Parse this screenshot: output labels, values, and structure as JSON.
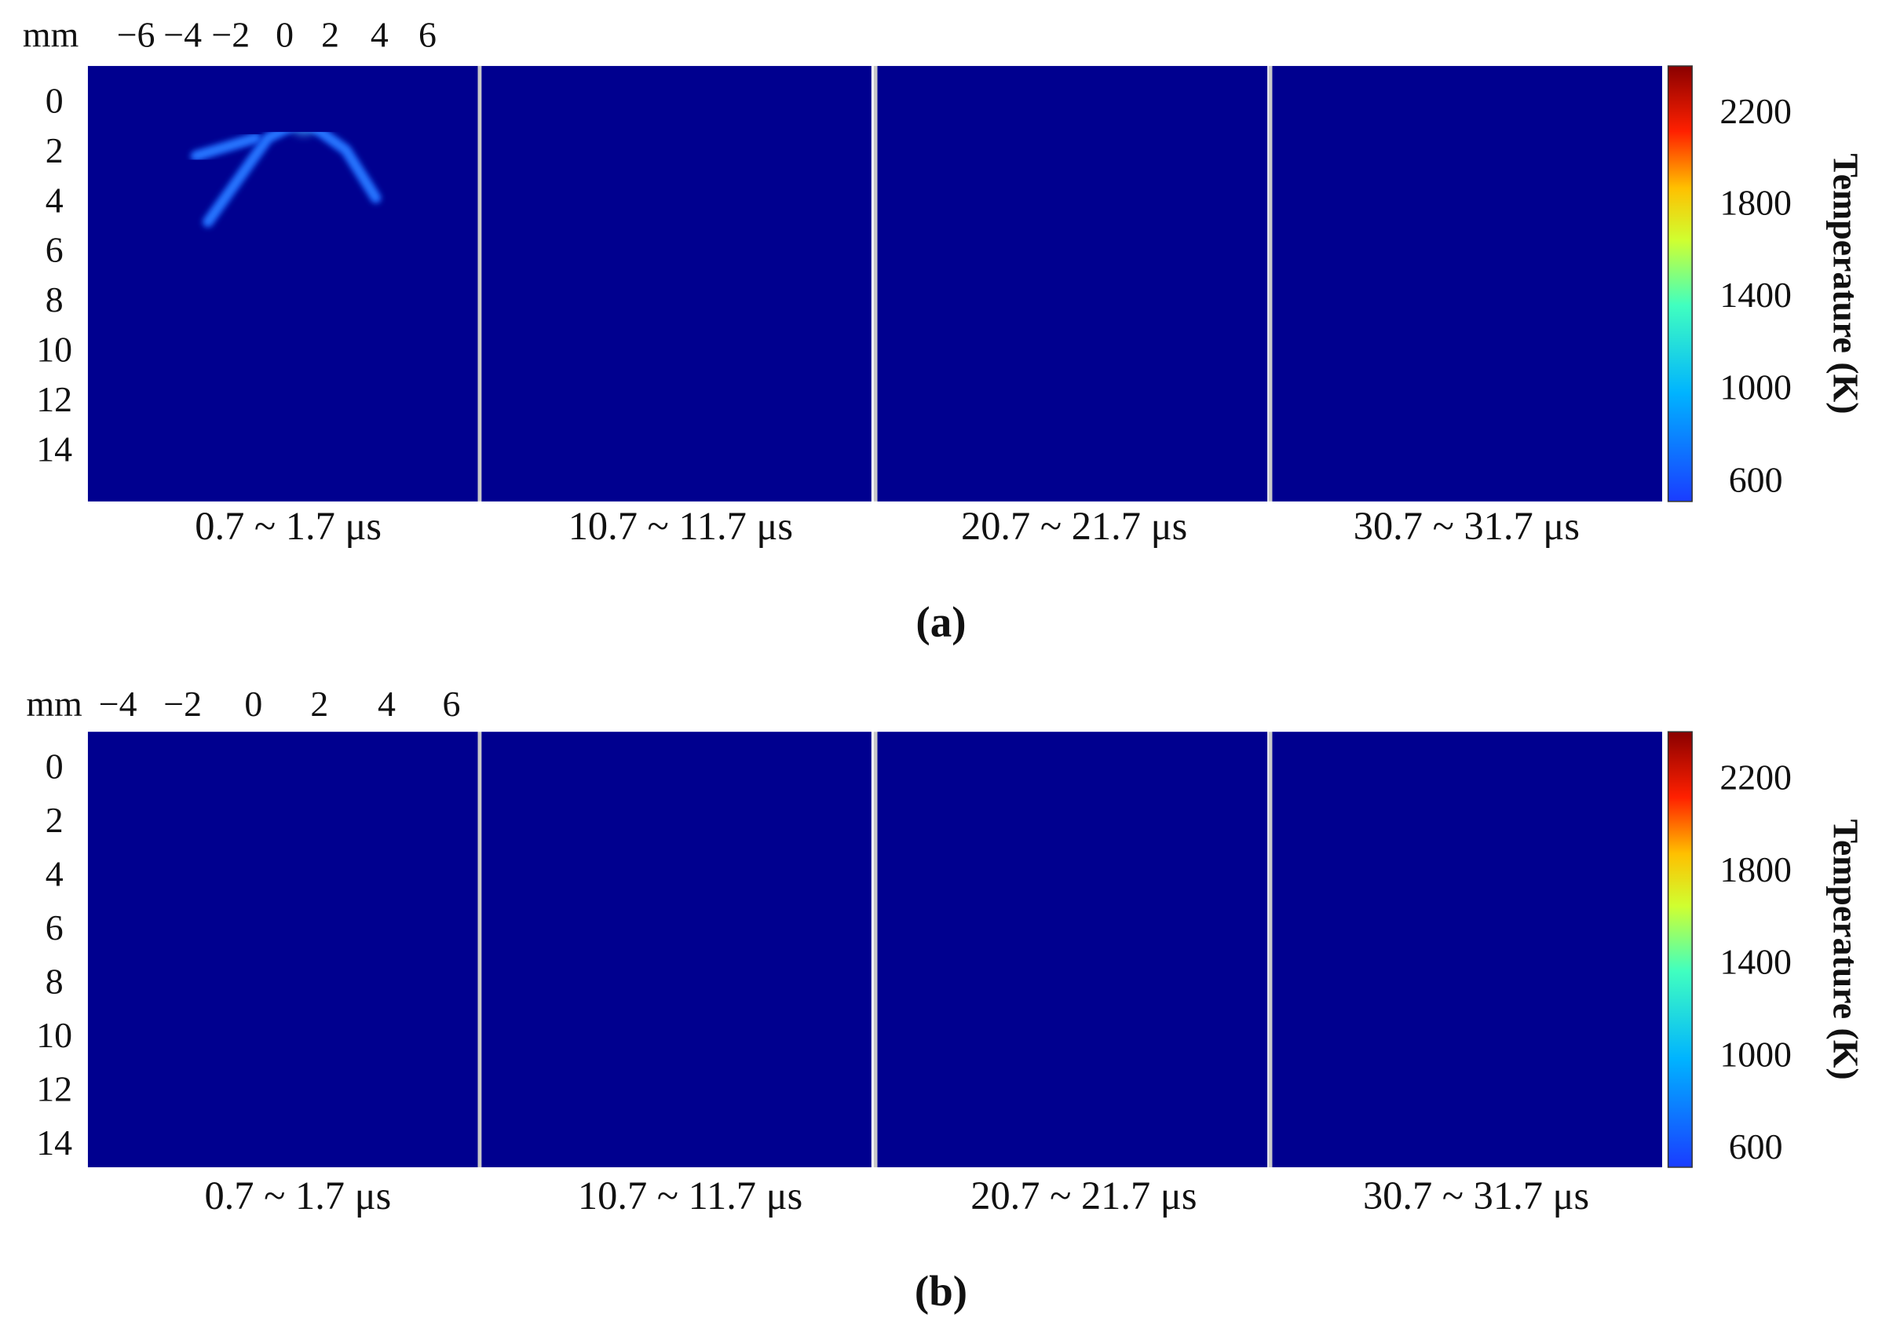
{
  "panels": [
    {
      "label": "(a)",
      "unit": "mm",
      "x_ticks": [
        "−6",
        "−4",
        "−2",
        "0",
        "2",
        "4",
        "6"
      ],
      "y_ticks": [
        0,
        2,
        4,
        6,
        8,
        10,
        12,
        14
      ],
      "times": [
        "0.7 ~ 1.7 μs",
        "10.7 ~ 11.7 μs",
        "20.7 ~ 21.7 μs",
        "30.7 ~ 31.7 μs"
      ],
      "colorbar": {
        "title": "Temperature (K)",
        "ticks": [
          2200,
          1800,
          1400,
          1000,
          600
        ]
      }
    },
    {
      "label": "(b)",
      "unit": "mm",
      "x_ticks": [
        "−4",
        "−2",
        "0",
        "2",
        "4",
        "6"
      ],
      "y_ticks": [
        0,
        2,
        4,
        6,
        8,
        10,
        12,
        14
      ],
      "times": [
        "0.7 ~ 1.7 μs",
        "10.7 ~ 11.7 μs",
        "20.7 ~ 21.7 μs",
        "30.7 ~ 31.7 μs"
      ],
      "colorbar": {
        "title": "Temperature (K)",
        "ticks": [
          2200,
          1800,
          1400,
          1000,
          600
        ]
      }
    }
  ]
}
